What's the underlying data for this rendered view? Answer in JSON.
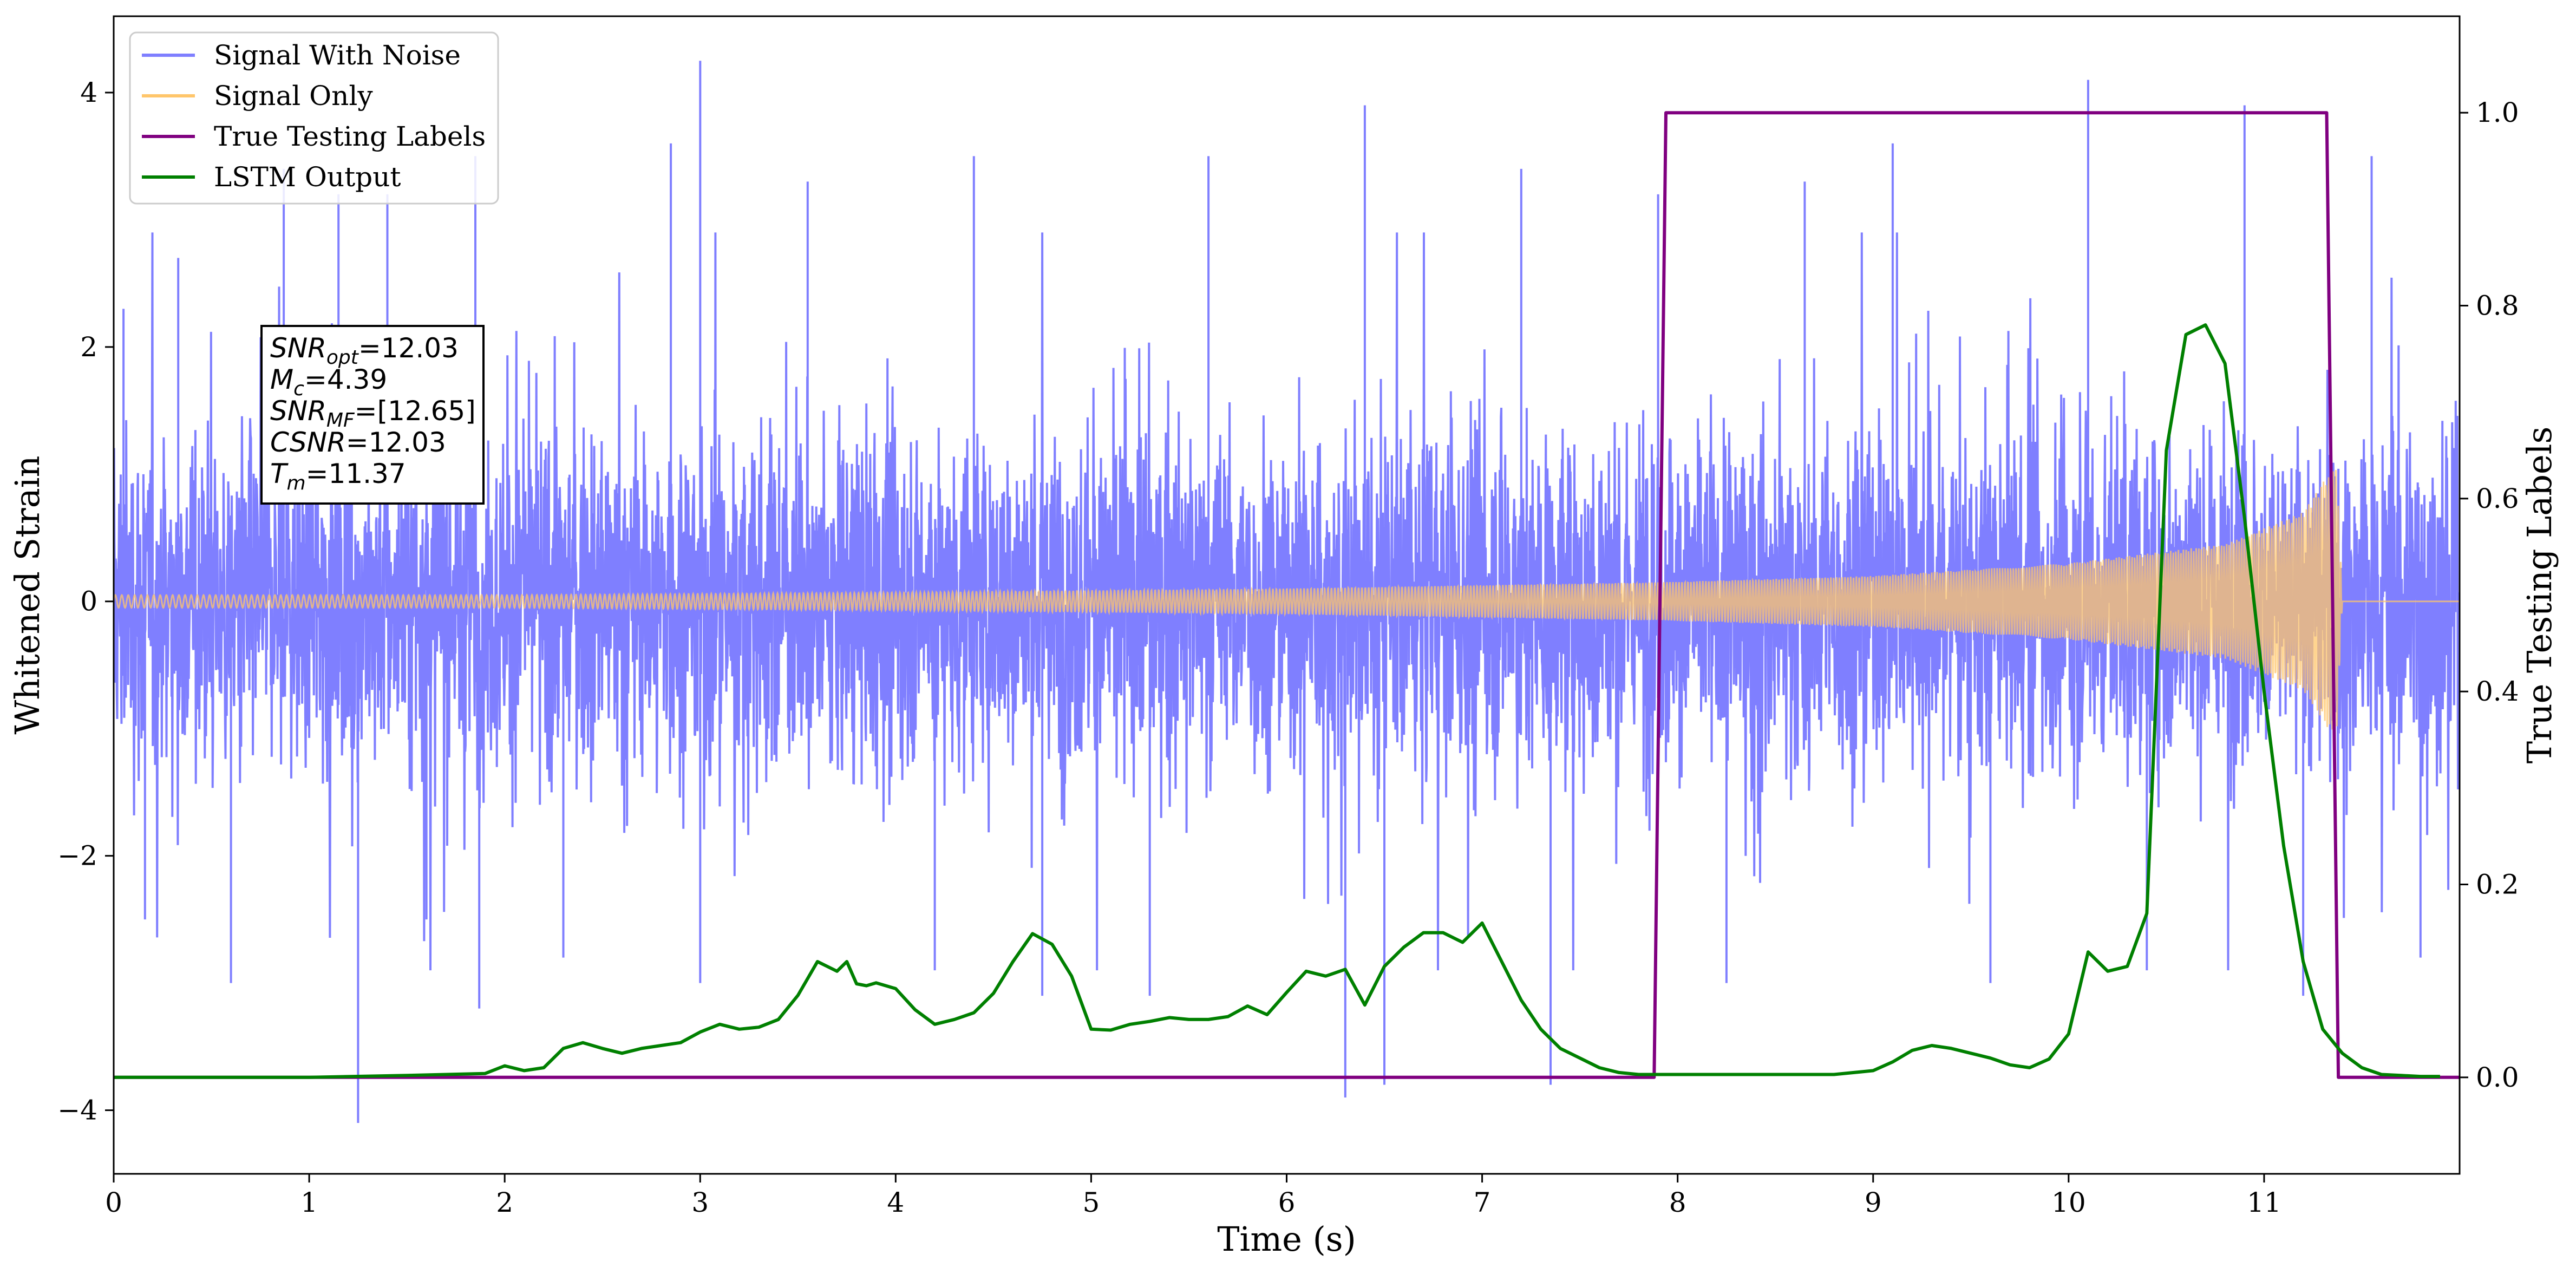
{
  "chart_data": {
    "type": "line",
    "xlabel": "Time (s)",
    "ylabel": "Whitened Strain",
    "y2label": "True Testing Labels",
    "xlim": [
      0,
      12
    ],
    "ylim": [
      -4.5,
      4.6
    ],
    "y2lim": [
      -0.1,
      1.1
    ],
    "xticks": [
      0,
      1,
      2,
      3,
      4,
      5,
      6,
      7,
      8,
      9,
      10,
      11
    ],
    "yticks": [
      -4,
      -2,
      0,
      2,
      4
    ],
    "y2ticks": [
      0.0,
      0.2,
      0.4,
      0.6,
      0.8,
      1.0
    ],
    "xtick_labels": [
      "0",
      "1",
      "2",
      "3",
      "4",
      "5",
      "6",
      "7",
      "8",
      "9",
      "10",
      "11"
    ],
    "ytick_labels": [
      "−4",
      "−2",
      "0",
      "2",
      "4"
    ],
    "y2tick_labels": [
      "0.0",
      "0.2",
      "0.4",
      "0.6",
      "0.8",
      "1.0"
    ],
    "grid": false,
    "legend_position": "top-left",
    "series": [
      {
        "name": "Signal With Noise",
        "color": "#7f7fff",
        "axis": "left",
        "style": "dense noise, approx. |amplitude| ~1.5 with spikes up to ~4.2",
        "spikes": [
          {
            "x": 0.05,
            "y": 2.3
          },
          {
            "x": 0.16,
            "y": -2.5
          },
          {
            "x": 0.33,
            "y": 2.7
          },
          {
            "x": 0.6,
            "y": -3.0
          },
          {
            "x": 0.87,
            "y": 3.4
          },
          {
            "x": 1.15,
            "y": 3.2
          },
          {
            "x": 1.25,
            "y": -4.1
          },
          {
            "x": 1.4,
            "y": 3.2
          },
          {
            "x": 1.6,
            "y": -2.5
          },
          {
            "x": 1.85,
            "y": 3.5
          },
          {
            "x": 1.87,
            "y": -3.2
          },
          {
            "x": 2.3,
            "y": -2.8
          },
          {
            "x": 2.85,
            "y": 3.6
          },
          {
            "x": 3.0,
            "y": 4.25
          },
          {
            "x": 3.0,
            "y": -3.0
          },
          {
            "x": 3.55,
            "y": 3.3
          },
          {
            "x": 4.2,
            "y": -2.9
          },
          {
            "x": 4.4,
            "y": 3.5
          },
          {
            "x": 4.75,
            "y": -3.1
          },
          {
            "x": 5.3,
            "y": -3.1
          },
          {
            "x": 5.6,
            "y": 3.5
          },
          {
            "x": 6.3,
            "y": -3.9
          },
          {
            "x": 6.4,
            "y": 3.9
          },
          {
            "x": 6.5,
            "y": -3.8
          },
          {
            "x": 7.2,
            "y": 3.4
          },
          {
            "x": 7.35,
            "y": -3.8
          },
          {
            "x": 7.9,
            "y": 3.2
          },
          {
            "x": 8.25,
            "y": -3.0
          },
          {
            "x": 8.65,
            "y": 3.3
          },
          {
            "x": 9.1,
            "y": 3.6
          },
          {
            "x": 9.6,
            "y": -3.0
          },
          {
            "x": 10.1,
            "y": 4.1
          },
          {
            "x": 10.4,
            "y": -2.9
          },
          {
            "x": 10.9,
            "y": 3.9
          },
          {
            "x": 11.2,
            "y": -3.1
          },
          {
            "x": 11.55,
            "y": 3.5
          },
          {
            "x": 11.8,
            "y": -2.8
          }
        ]
      },
      {
        "name": "Signal Only",
        "color": "#ffc66b",
        "axis": "left",
        "style": "chirp",
        "envelope": [
          {
            "x": 0,
            "y": 0.05
          },
          {
            "x": 2,
            "y": 0.05
          },
          {
            "x": 4,
            "y": 0.07
          },
          {
            "x": 6,
            "y": 0.1
          },
          {
            "x": 7.9,
            "y": 0.15
          },
          {
            "x": 9,
            "y": 0.2
          },
          {
            "x": 10,
            "y": 0.3
          },
          {
            "x": 10.8,
            "y": 0.45
          },
          {
            "x": 11.2,
            "y": 0.7
          },
          {
            "x": 11.37,
            "y": 1.1
          },
          {
            "x": 11.4,
            "y": 0
          },
          {
            "x": 12,
            "y": 0
          }
        ]
      },
      {
        "name": "True Testing Labels",
        "color": "#800080",
        "axis": "right",
        "x": [
          0,
          7.88,
          7.94,
          11.32,
          11.38,
          12
        ],
        "y": [
          0,
          0,
          1,
          1,
          0,
          0
        ]
      },
      {
        "name": "LSTM Output",
        "color": "#008000",
        "axis": "right",
        "x": [
          0,
          0.3,
          1,
          1.5,
          1.9,
          2.0,
          2.1,
          2.2,
          2.3,
          2.4,
          2.5,
          2.6,
          2.7,
          2.8,
          2.9,
          3.0,
          3.1,
          3.2,
          3.3,
          3.4,
          3.5,
          3.6,
          3.7,
          3.75,
          3.8,
          3.85,
          3.9,
          4.0,
          4.1,
          4.2,
          4.3,
          4.4,
          4.5,
          4.6,
          4.7,
          4.8,
          4.9,
          5.0,
          5.1,
          5.2,
          5.3,
          5.4,
          5.5,
          5.6,
          5.7,
          5.8,
          5.9,
          6.0,
          6.1,
          6.2,
          6.3,
          6.4,
          6.5,
          6.6,
          6.7,
          6.8,
          6.9,
          7.0,
          7.1,
          7.2,
          7.3,
          7.4,
          7.5,
          7.6,
          7.7,
          7.8,
          7.9,
          8.0,
          8.3,
          8.6,
          8.8,
          9.0,
          9.1,
          9.2,
          9.3,
          9.4,
          9.5,
          9.6,
          9.7,
          9.8,
          9.9,
          10.0,
          10.1,
          10.2,
          10.3,
          10.4,
          10.5,
          10.6,
          10.7,
          10.8,
          10.9,
          11.0,
          11.1,
          11.2,
          11.3,
          11.4,
          11.5,
          11.6,
          11.7,
          11.8,
          11.9
        ],
        "y": [
          0.0,
          0.0,
          0.0,
          0.002,
          0.004,
          0.012,
          0.007,
          0.01,
          0.03,
          0.036,
          0.03,
          0.025,
          0.03,
          0.033,
          0.036,
          0.047,
          0.055,
          0.05,
          0.052,
          0.06,
          0.085,
          0.12,
          0.11,
          0.12,
          0.097,
          0.095,
          0.098,
          0.092,
          0.07,
          0.055,
          0.06,
          0.067,
          0.087,
          0.12,
          0.149,
          0.138,
          0.105,
          0.05,
          0.049,
          0.055,
          0.058,
          0.062,
          0.06,
          0.06,
          0.063,
          0.074,
          0.065,
          0.088,
          0.11,
          0.105,
          0.112,
          0.075,
          0.115,
          0.135,
          0.15,
          0.15,
          0.14,
          0.16,
          0.12,
          0.08,
          0.05,
          0.03,
          0.02,
          0.01,
          0.005,
          0.003,
          0.003,
          0.003,
          0.003,
          0.003,
          0.003,
          0.007,
          0.016,
          0.028,
          0.033,
          0.03,
          0.025,
          0.02,
          0.013,
          0.01,
          0.019,
          0.045,
          0.13,
          0.11,
          0.115,
          0.17,
          0.65,
          0.77,
          0.78,
          0.74,
          0.58,
          0.4,
          0.24,
          0.12,
          0.05,
          0.025,
          0.01,
          0.003,
          0.002,
          0.001,
          0.001
        ]
      }
    ],
    "annotation": {
      "lines": [
        {
          "italic": "SNR",
          "sub": "opt",
          "text": "=12.03"
        },
        {
          "italic": "M",
          "sub": "c",
          "text": "=4.39"
        },
        {
          "italic": "SNR",
          "sub": "MF",
          "text": "=[12.65]"
        },
        {
          "italic": "CSNR",
          "sub": "",
          "text": "=12.03"
        },
        {
          "italic": "T",
          "sub": "m",
          "text": "=11.37"
        }
      ]
    }
  }
}
